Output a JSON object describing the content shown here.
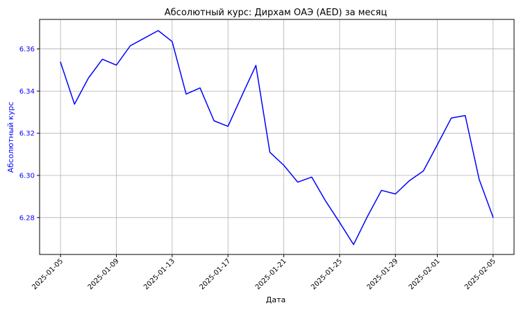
{
  "chart_data": {
    "type": "line",
    "title": "Абсолютный курс: Дирхам ОАЭ (AED) за месяц",
    "xlabel": "Дата",
    "ylabel": "Абсолютный курс",
    "x_ticks": [
      "2025-01-05",
      "2025-01-09",
      "2025-01-13",
      "2025-01-17",
      "2025-01-21",
      "2025-01-25",
      "2025-01-29",
      "2025-02-01",
      "2025-02-05"
    ],
    "y_ticks": [
      "6.28",
      "6.30",
      "6.32",
      "6.34",
      "6.36"
    ],
    "y_tick_values": [
      6.28,
      6.3,
      6.32,
      6.34,
      6.36
    ],
    "ylim": [
      6.2625,
      6.374
    ],
    "xlim": [
      "2025-01-03 12:00",
      "2025-02-06 12:00"
    ],
    "grid": true,
    "series": [
      {
        "color": "#0000ff",
        "points": [
          [
            "2025-01-05",
            6.3537
          ],
          [
            "2025-01-06",
            6.3338
          ],
          [
            "2025-01-07",
            6.3462
          ],
          [
            "2025-01-08",
            6.3551
          ],
          [
            "2025-01-09",
            6.3523
          ],
          [
            "2025-01-10",
            6.3615
          ],
          [
            "2025-01-11",
            6.3651
          ],
          [
            "2025-01-12",
            6.3687
          ],
          [
            "2025-01-13",
            6.3635
          ],
          [
            "2025-01-14",
            6.3386
          ],
          [
            "2025-01-15",
            6.3415
          ],
          [
            "2025-01-16",
            6.3259
          ],
          [
            "2025-01-17",
            6.3233
          ],
          [
            "2025-01-18",
            6.3379
          ],
          [
            "2025-01-19",
            6.3522
          ],
          [
            "2025-01-20",
            6.311
          ],
          [
            "2025-01-21",
            6.3048
          ],
          [
            "2025-01-22",
            6.2968
          ],
          [
            "2025-01-23",
            6.2992
          ],
          [
            "2025-01-24",
            6.2878
          ],
          [
            "2025-01-25",
            6.2777
          ],
          [
            "2025-01-26",
            6.2672
          ],
          [
            "2025-01-27",
            6.2806
          ],
          [
            "2025-01-28",
            6.2929
          ],
          [
            "2025-01-29",
            6.2912
          ],
          [
            "2025-01-30",
            6.2975
          ],
          [
            "2025-01-31",
            6.3021
          ],
          [
            "2025-02-01",
            6.3145
          ],
          [
            "2025-02-02",
            6.3272
          ],
          [
            "2025-02-03",
            6.3284
          ],
          [
            "2025-02-04",
            6.2981
          ],
          [
            "2025-02-05",
            6.2801
          ]
        ]
      }
    ],
    "colors": {
      "line": "#0000ff",
      "ytick_text": "#0000ff",
      "ylabel_text": "#0000ff",
      "grid": "#b0b0b0",
      "axes": "#000000"
    }
  }
}
